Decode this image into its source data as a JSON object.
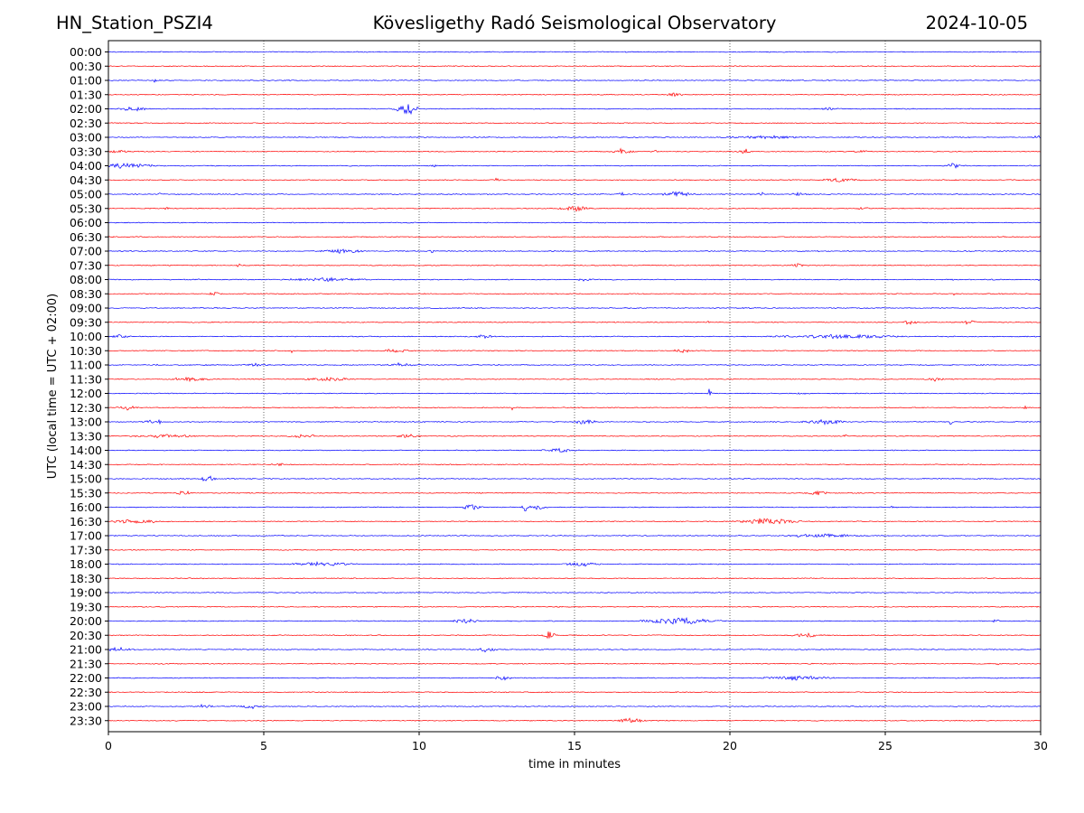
{
  "header": {
    "station": "HN_Station_PSZI4",
    "observatory": "Kövesligethy Radó Seismological Observatory",
    "date": "2024-10-05"
  },
  "chart_data": {
    "type": "line",
    "title": "Kövesligethy Radó Seismological Observatory",
    "xlabel": "time in minutes",
    "ylabel": "UTC (local time = UTC + 02:00)",
    "xlim": [
      0,
      30
    ],
    "x_ticks": [
      0,
      5,
      10,
      15,
      20,
      25,
      30
    ],
    "vertical_grid": [
      5,
      10,
      15,
      20,
      25
    ],
    "series_colors": [
      "#0000ff",
      "#ff0000"
    ],
    "rows": [
      {
        "label": "00:00",
        "events": []
      },
      {
        "label": "00:30",
        "events": []
      },
      {
        "label": "01:00",
        "events": [
          [
            1.5,
            0.08,
            0.4
          ]
        ]
      },
      {
        "label": "01:30",
        "events": [
          [
            18.2,
            0.3,
            0.3
          ]
        ]
      },
      {
        "label": "02:00",
        "events": [
          [
            0.8,
            0.6,
            0.35
          ],
          [
            9.6,
            0.5,
            1.0
          ],
          [
            23.2,
            0.3,
            0.3
          ]
        ]
      },
      {
        "label": "02:30",
        "events": []
      },
      {
        "label": "03:00",
        "events": [
          [
            21.0,
            1.5,
            0.3
          ],
          [
            29.9,
            0.2,
            0.3
          ]
        ]
      },
      {
        "label": "03:30",
        "events": [
          [
            0.3,
            0.5,
            0.3
          ],
          [
            16.5,
            0.5,
            0.4
          ],
          [
            17.6,
            0.1,
            0.5
          ],
          [
            20.5,
            0.3,
            0.4
          ],
          [
            24.2,
            0.3,
            0.3
          ]
        ]
      },
      {
        "label": "04:00",
        "events": [
          [
            0.6,
            1.1,
            0.5
          ],
          [
            10.5,
            0.1,
            0.45
          ],
          [
            27.2,
            0.25,
            0.6
          ]
        ]
      },
      {
        "label": "04:30",
        "events": [
          [
            12.5,
            0.1,
            0.3
          ],
          [
            23.5,
            0.8,
            0.3
          ]
        ]
      },
      {
        "label": "05:00",
        "events": [
          [
            1.7,
            0.1,
            0.4
          ],
          [
            16.5,
            0.1,
            0.5
          ],
          [
            18.3,
            0.6,
            0.5
          ],
          [
            21.0,
            0.1,
            0.5
          ],
          [
            22.2,
            0.3,
            0.3
          ]
        ]
      },
      {
        "label": "05:30",
        "events": [
          [
            1.9,
            0.1,
            0.3
          ],
          [
            15.0,
            0.6,
            0.55
          ],
          [
            24.3,
            0.3,
            0.3
          ]
        ]
      },
      {
        "label": "06:00",
        "events": []
      },
      {
        "label": "06:30",
        "events": []
      },
      {
        "label": "07:00",
        "events": [
          [
            7.5,
            0.8,
            0.35
          ],
          [
            10.4,
            0.1,
            0.4
          ]
        ]
      },
      {
        "label": "07:30",
        "events": [
          [
            4.2,
            0.08,
            0.6
          ],
          [
            22.2,
            0.25,
            0.4
          ]
        ]
      },
      {
        "label": "08:00",
        "events": [
          [
            7.0,
            1.5,
            0.3
          ],
          [
            15.3,
            0.4,
            0.3
          ],
          [
            27.2,
            0.05,
            0.7
          ],
          [
            29.9,
            0.1,
            0.3
          ]
        ]
      },
      {
        "label": "08:30",
        "events": [
          [
            3.4,
            0.2,
            0.4
          ],
          [
            27.2,
            0.05,
            0.35
          ]
        ]
      },
      {
        "label": "09:00",
        "events": [
          [
            3.0,
            0.05,
            0.4
          ]
        ]
      },
      {
        "label": "09:30",
        "events": [
          [
            19.3,
            0.05,
            0.3
          ],
          [
            25.8,
            0.3,
            0.4
          ],
          [
            27.7,
            0.3,
            0.4
          ]
        ]
      },
      {
        "label": "10:00",
        "events": [
          [
            0.3,
            0.5,
            0.35
          ],
          [
            12.1,
            0.4,
            0.3
          ],
          [
            23.5,
            2.5,
            0.35
          ]
        ]
      },
      {
        "label": "10:30",
        "events": [
          [
            5.9,
            0.05,
            0.6
          ],
          [
            9.2,
            0.5,
            0.4
          ],
          [
            18.5,
            0.4,
            0.3
          ]
        ]
      },
      {
        "label": "11:00",
        "events": [
          [
            1.5,
            0.1,
            0.3
          ],
          [
            4.8,
            0.5,
            0.3
          ],
          [
            9.4,
            0.6,
            0.3
          ]
        ]
      },
      {
        "label": "11:30",
        "events": [
          [
            2.6,
            0.8,
            0.35
          ],
          [
            7.0,
            0.8,
            0.35
          ],
          [
            7.6,
            0.05,
            0.8
          ],
          [
            26.6,
            0.4,
            0.3
          ]
        ]
      },
      {
        "label": "12:00",
        "events": [
          [
            19.35,
            0.08,
            1.0
          ],
          [
            22.3,
            0.3,
            0.3
          ]
        ]
      },
      {
        "label": "12:30",
        "events": [
          [
            0.6,
            0.4,
            0.4
          ],
          [
            13.0,
            0.05,
            0.5
          ],
          [
            29.5,
            0.1,
            0.3
          ]
        ]
      },
      {
        "label": "13:00",
        "events": [
          [
            1.3,
            0.3,
            0.4
          ],
          [
            1.65,
            0.05,
            0.6
          ],
          [
            15.3,
            0.5,
            0.45
          ],
          [
            23.0,
            0.8,
            0.45
          ],
          [
            27.1,
            0.1,
            0.5
          ]
        ]
      },
      {
        "label": "13:30",
        "events": [
          [
            1.8,
            1.3,
            0.3
          ],
          [
            6.2,
            0.5,
            0.3
          ],
          [
            6.6,
            0.05,
            0.6
          ],
          [
            9.6,
            0.5,
            0.3
          ],
          [
            23.7,
            0.1,
            0.3
          ]
        ]
      },
      {
        "label": "14:00",
        "events": [
          [
            14.5,
            0.7,
            0.3
          ]
        ]
      },
      {
        "label": "14:30",
        "events": [
          [
            5.5,
            0.3,
            0.3
          ]
        ]
      },
      {
        "label": "15:00",
        "events": [
          [
            3.2,
            0.3,
            0.6
          ]
        ]
      },
      {
        "label": "15:30",
        "events": [
          [
            2.4,
            0.3,
            0.5
          ],
          [
            22.8,
            0.4,
            0.45
          ]
        ]
      },
      {
        "label": "16:00",
        "events": [
          [
            11.7,
            0.4,
            0.6
          ],
          [
            13.4,
            0.1,
            1.0
          ],
          [
            13.8,
            0.4,
            0.4
          ],
          [
            25.2,
            0.1,
            0.3
          ]
        ]
      },
      {
        "label": "16:30",
        "events": [
          [
            0.9,
            1.0,
            0.4
          ],
          [
            21.2,
            1.2,
            0.6
          ]
        ]
      },
      {
        "label": "17:00",
        "events": [
          [
            23.0,
            1.5,
            0.3
          ]
        ]
      },
      {
        "label": "17:30",
        "events": []
      },
      {
        "label": "18:00",
        "events": [
          [
            6.9,
            1.3,
            0.35
          ],
          [
            15.2,
            0.7,
            0.4
          ]
        ]
      },
      {
        "label": "18:30",
        "events": []
      },
      {
        "label": "19:00",
        "events": []
      },
      {
        "label": "19:30",
        "events": []
      },
      {
        "label": "20:00",
        "events": [
          [
            11.5,
            0.5,
            0.4
          ],
          [
            18.4,
            1.5,
            0.6
          ],
          [
            28.5,
            0.2,
            0.3
          ]
        ]
      },
      {
        "label": "20:30",
        "events": [
          [
            14.2,
            0.25,
            0.8
          ],
          [
            22.5,
            0.6,
            0.4
          ]
        ]
      },
      {
        "label": "21:00",
        "events": [
          [
            0.3,
            0.6,
            0.3
          ],
          [
            12.1,
            0.5,
            0.4
          ]
        ]
      },
      {
        "label": "21:30",
        "events": [
          [
            28.6,
            0.1,
            0.3
          ]
        ]
      },
      {
        "label": "22:00",
        "events": [
          [
            12.7,
            0.3,
            0.45
          ],
          [
            22.2,
            1.3,
            0.4
          ]
        ]
      },
      {
        "label": "22:30",
        "events": []
      },
      {
        "label": "23:00",
        "events": [
          [
            3.1,
            0.3,
            0.35
          ],
          [
            4.6,
            0.4,
            0.5
          ]
        ]
      },
      {
        "label": "23:30",
        "events": [
          [
            16.8,
            0.6,
            0.4
          ]
        ]
      }
    ]
  }
}
